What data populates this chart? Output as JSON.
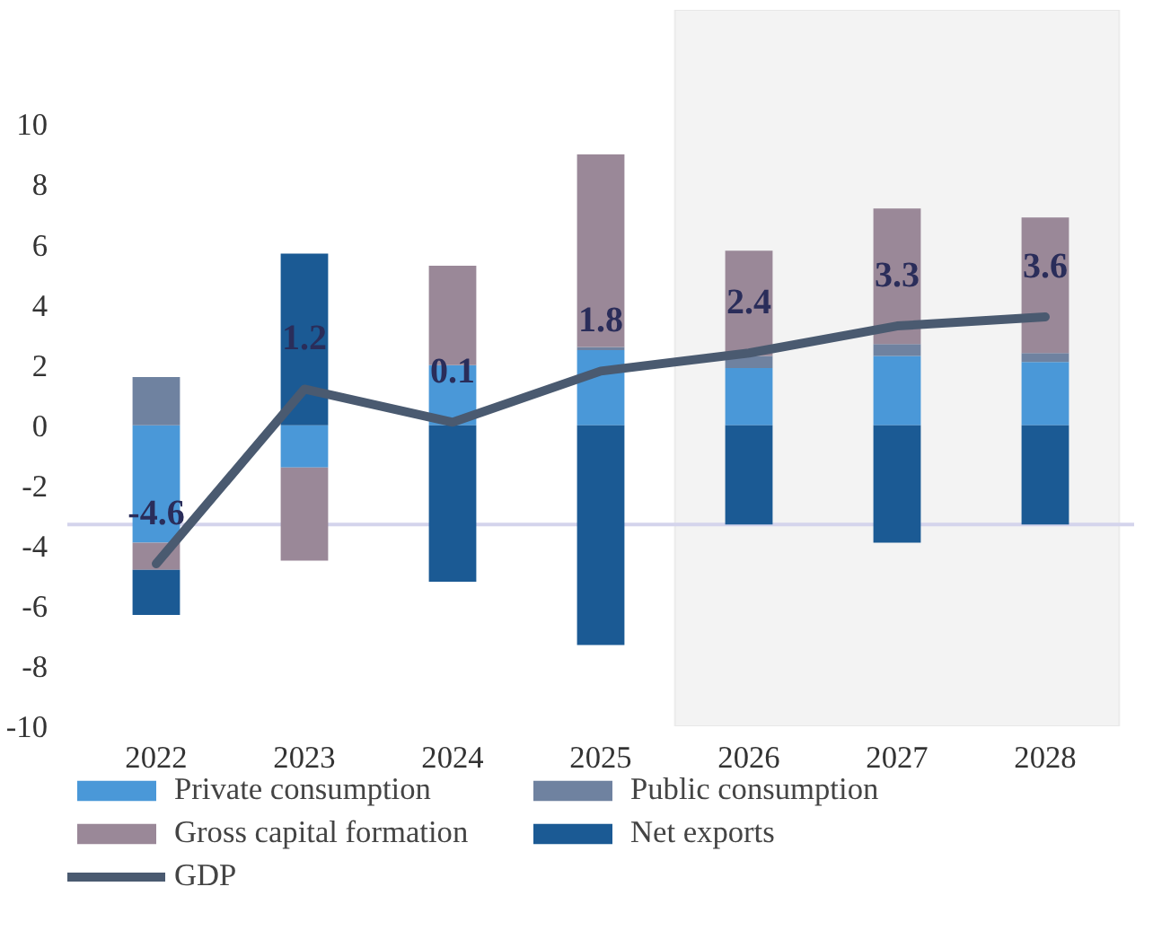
{
  "chart_data": {
    "type": "bar",
    "stacked": true,
    "categories": [
      "2022",
      "2023",
      "2024",
      "2025",
      "2026",
      "2027",
      "2028"
    ],
    "series": [
      {
        "name": "Private consumption",
        "color": "#4a98d8",
        "values": [
          -3.9,
          -1.4,
          2.0,
          2.5,
          1.9,
          2.3,
          2.1
        ]
      },
      {
        "name": "Public consumption",
        "color": "#6f82a0",
        "values": [
          1.6,
          null,
          null,
          0.1,
          0.4,
          0.4,
          0.3
        ]
      },
      {
        "name": "Gross capital formation",
        "color": "#9a8898",
        "values": [
          -0.9,
          -3.1,
          3.3,
          6.4,
          3.5,
          4.5,
          4.5
        ]
      },
      {
        "name": "Net exports",
        "color": "#1b5a94",
        "values": [
          -1.5,
          5.7,
          -5.2,
          -7.3,
          -3.3,
          -3.9,
          -3.3
        ]
      },
      {
        "name": "GDP",
        "type": "line",
        "color": "#4a5a70",
        "values": [
          -4.6,
          1.2,
          0.1,
          1.8,
          2.4,
          3.3,
          3.6
        ],
        "data_labels": true
      }
    ],
    "ylim": [
      -10,
      13.8
    ],
    "yticks": [
      -10,
      -8,
      -6,
      -4,
      -2,
      0,
      2,
      4,
      6,
      8,
      10
    ],
    "grid": false,
    "legend": "bottom",
    "marker": "none",
    "ref_lines": [
      {
        "axis": "y",
        "value": -3.3,
        "color": "#d4d4ec"
      }
    ],
    "bands": [
      {
        "axis": "x",
        "from": "2026",
        "to": "2028",
        "color": "#f3f3f3"
      }
    ]
  }
}
